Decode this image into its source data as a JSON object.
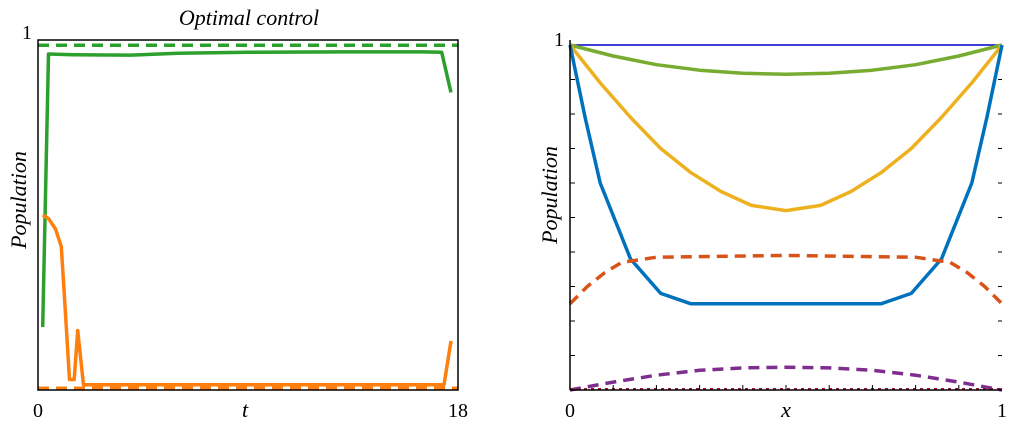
{
  "chart_data": [
    {
      "type": "line",
      "title": "Optimal control",
      "xlabel": "t",
      "ylabel": "Population",
      "xlim": [
        0,
        18
      ],
      "ylim": [
        0,
        1
      ],
      "x_tick_labels": [
        {
          "value": 0,
          "label": "0"
        },
        {
          "value": 18,
          "label": "18"
        }
      ],
      "y_tick_labels": [
        {
          "value": 1,
          "label": "1"
        }
      ],
      "grid": false,
      "series": [
        {
          "color": "#2ca02c",
          "style": "solid",
          "points": [
            [
              0.2,
              0.18
            ],
            [
              0.45,
              0.96
            ],
            [
              1.5,
              0.958
            ],
            [
              4,
              0.957
            ],
            [
              6,
              0.962
            ],
            [
              9,
              0.965
            ],
            [
              13,
              0.966
            ],
            [
              16.5,
              0.966
            ],
            [
              17.3,
              0.965
            ],
            [
              17.7,
              0.85
            ]
          ]
        },
        {
          "color": "#ff7f0e",
          "style": "solid",
          "points": [
            [
              0.2,
              0.5
            ],
            [
              0.45,
              0.49
            ],
            [
              0.75,
              0.46
            ],
            [
              1.0,
              0.41
            ],
            [
              1.15,
              0.25
            ],
            [
              1.35,
              0.03
            ],
            [
              1.55,
              0.03
            ],
            [
              1.7,
              0.17
            ],
            [
              1.95,
              0.015
            ],
            [
              3,
              0.015
            ],
            [
              8,
              0.015
            ],
            [
              13,
              0.015
            ],
            [
              17.4,
              0.015
            ],
            [
              17.7,
              0.14
            ]
          ]
        },
        {
          "color": "#2ca02c",
          "style": "dashed",
          "points": [
            [
              0,
              0.985
            ],
            [
              18,
              0.985
            ]
          ]
        },
        {
          "color": "#ff7f0e",
          "style": "dashed",
          "points": [
            [
              0,
              0.005
            ],
            [
              18,
              0.005
            ]
          ]
        }
      ]
    },
    {
      "type": "line",
      "title": "",
      "xlabel": "x",
      "ylabel": "Population",
      "xlim": [
        0,
        1
      ],
      "ylim": [
        0,
        1
      ],
      "x_tick_labels": [
        {
          "value": 0,
          "label": "0"
        },
        {
          "value": 1,
          "label": "1"
        }
      ],
      "y_tick_labels": [
        {
          "value": 1,
          "label": "1"
        }
      ],
      "grid": false,
      "series": [
        {
          "color": "#0000cc",
          "style": "solid",
          "points": [
            [
              0,
              1
            ],
            [
              1,
              1
            ]
          ]
        },
        {
          "color": "#77ac30",
          "style": "solid",
          "points": [
            [
              0,
              1
            ],
            [
              0.1,
              0.968
            ],
            [
              0.2,
              0.943
            ],
            [
              0.3,
              0.927
            ],
            [
              0.4,
              0.918
            ],
            [
              0.5,
              0.915
            ],
            [
              0.6,
              0.918
            ],
            [
              0.7,
              0.927
            ],
            [
              0.8,
              0.943
            ],
            [
              0.9,
              0.968
            ],
            [
              1,
              1
            ]
          ]
        },
        {
          "color": "#edb120",
          "style": "solid",
          "points": [
            [
              0,
              1
            ],
            [
              0.07,
              0.89
            ],
            [
              0.14,
              0.79
            ],
            [
              0.21,
              0.7
            ],
            [
              0.28,
              0.63
            ],
            [
              0.35,
              0.575
            ],
            [
              0.42,
              0.535
            ],
            [
              0.5,
              0.52
            ],
            [
              0.58,
              0.535
            ],
            [
              0.65,
              0.575
            ],
            [
              0.72,
              0.63
            ],
            [
              0.79,
              0.7
            ],
            [
              0.86,
              0.79
            ],
            [
              0.93,
              0.89
            ],
            [
              1,
              1
            ]
          ]
        },
        {
          "color": "#0072bd",
          "style": "solid",
          "points": [
            [
              0,
              1
            ],
            [
              0.035,
              0.79
            ],
            [
              0.07,
              0.6
            ],
            [
              0.14,
              0.38
            ],
            [
              0.21,
              0.28
            ],
            [
              0.28,
              0.25
            ],
            [
              0.5,
              0.25
            ],
            [
              0.72,
              0.25
            ],
            [
              0.79,
              0.28
            ],
            [
              0.86,
              0.38
            ],
            [
              0.93,
              0.6
            ],
            [
              0.965,
              0.79
            ],
            [
              1,
              1
            ]
          ]
        },
        {
          "color": "#d95319",
          "style": "dashed",
          "points": [
            [
              0,
              0.25
            ],
            [
              0.04,
              0.3
            ],
            [
              0.08,
              0.34
            ],
            [
              0.12,
              0.37
            ],
            [
              0.2,
              0.385
            ],
            [
              0.5,
              0.39
            ],
            [
              0.8,
              0.385
            ],
            [
              0.88,
              0.37
            ],
            [
              0.92,
              0.34
            ],
            [
              0.96,
              0.3
            ],
            [
              1,
              0.25
            ]
          ]
        },
        {
          "color": "#7e2f8e",
          "style": "dashed",
          "points": [
            [
              0,
              0
            ],
            [
              0.1,
              0.023
            ],
            [
              0.2,
              0.043
            ],
            [
              0.3,
              0.057
            ],
            [
              0.4,
              0.064
            ],
            [
              0.5,
              0.066
            ],
            [
              0.6,
              0.064
            ],
            [
              0.7,
              0.057
            ],
            [
              0.8,
              0.043
            ],
            [
              0.9,
              0.023
            ],
            [
              1,
              0
            ]
          ]
        },
        {
          "color": "#a2142f",
          "style": "dotted",
          "points": [
            [
              0,
              0.003
            ],
            [
              1,
              0.003
            ]
          ]
        }
      ]
    }
  ]
}
